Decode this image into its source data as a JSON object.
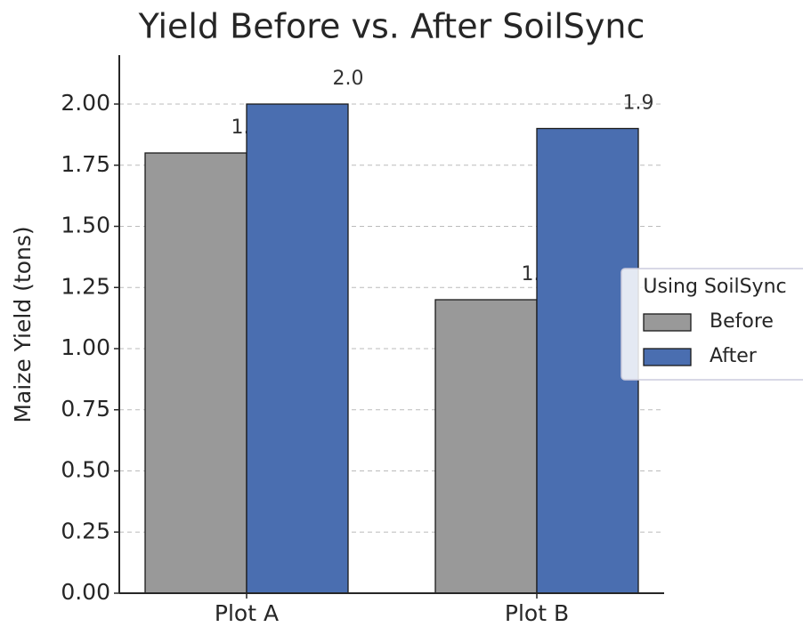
{
  "chart_data": {
    "type": "bar",
    "title": "Yield Before vs. After SoilSync",
    "y_label": "Maize Yield (tons)",
    "categories": [
      "Plot A",
      "Plot B"
    ],
    "series": [
      {
        "name": "Before",
        "color": "#999999",
        "values": [
          1.8,
          1.2
        ],
        "value_labels": [
          "1.8",
          "1.2"
        ]
      },
      {
        "name": "After",
        "color": "#4a6eb0",
        "values": [
          2,
          1.9
        ],
        "value_labels": [
          "2.0",
          "1.9"
        ]
      }
    ],
    "legend_title": "Using SoilSync",
    "legend_position": "right",
    "ylim": [
      0,
      2.2
    ],
    "yticks": [
      {
        "value": 0,
        "label": "0.00"
      },
      {
        "value": 0.25,
        "label": "0.25"
      },
      {
        "value": 0.5,
        "label": "0.50"
      },
      {
        "value": 0.75,
        "label": "0.75"
      },
      {
        "value": 1,
        "label": "1.00"
      },
      {
        "value": 1.25,
        "label": "1.25"
      },
      {
        "value": 1.5,
        "label": "1.50"
      },
      {
        "value": 1.75,
        "label": "1.75"
      },
      {
        "value": 2,
        "label": "2.00"
      }
    ],
    "grid": true
  }
}
